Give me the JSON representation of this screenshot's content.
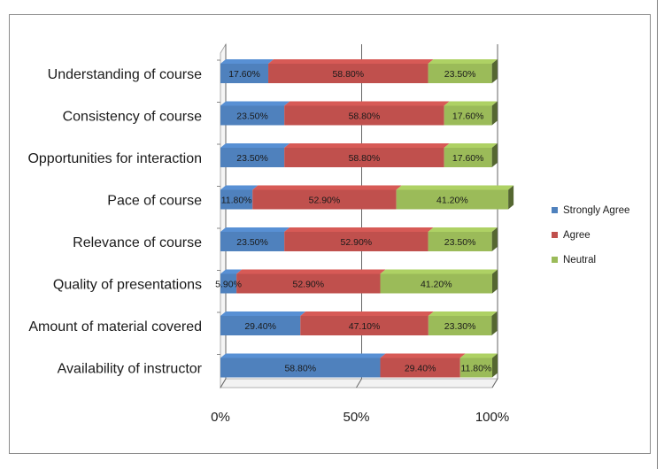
{
  "chart_data": {
    "type": "bar",
    "orientation": "horizontal",
    "stacked": "percent",
    "categories": [
      "Understanding of course",
      "Consistency of course",
      "Opportunities for interaction",
      "Pace of course",
      "Relevance of course",
      "Quality of presentations",
      "Amount of material covered",
      "Availability of instructor"
    ],
    "series": [
      {
        "name": "Strongly Agree",
        "color": "#4f81bd",
        "values": [
          17.6,
          23.5,
          23.5,
          11.8,
          23.5,
          5.9,
          29.4,
          58.8
        ],
        "labels": [
          "17.60%",
          "23.50%",
          "23.50%",
          "11.80%",
          "23.50%",
          "5.90%",
          "29.40%",
          "58.80%"
        ]
      },
      {
        "name": "Agree",
        "color": "#c0504d",
        "values": [
          58.8,
          58.8,
          58.8,
          52.9,
          52.9,
          52.9,
          47.1,
          29.4
        ],
        "labels": [
          "58.80%",
          "58.80%",
          "58.80%",
          "52.90%",
          "52.90%",
          "52.90%",
          "47.10%",
          "29.40%"
        ]
      },
      {
        "name": "Neutral",
        "color": "#9bbb59",
        "values": [
          23.5,
          17.6,
          17.6,
          41.2,
          23.5,
          41.2,
          23.3,
          11.8
        ],
        "labels": [
          "23.50%",
          "17.60%",
          "17.60%",
          "41.20%",
          "23.50%",
          "41.20%",
          "23.30%",
          "11.80%"
        ]
      }
    ],
    "xaxis": {
      "ticks": [
        "0%",
        "50%",
        "100%"
      ],
      "range": [
        0,
        100
      ]
    },
    "gridlines": true,
    "legend_position": "right",
    "style_3d": true
  }
}
